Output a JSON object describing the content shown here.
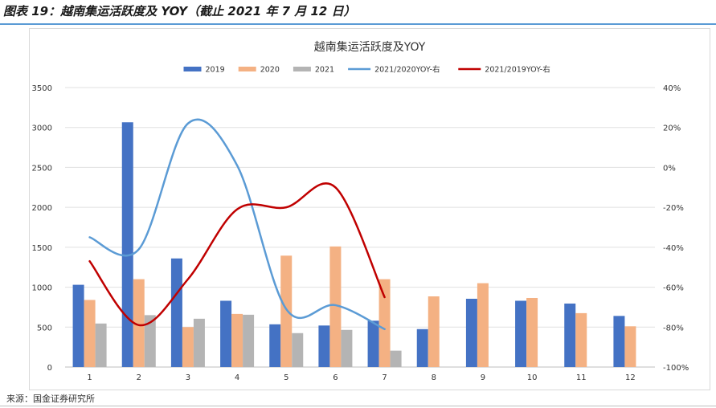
{
  "header": {
    "figure_title": "图表 19：越南集运活跃度及 YOY（截止 2021 年 7 月 12 日）"
  },
  "footer": {
    "source": "来源：国金证券研究所"
  },
  "chart_data": {
    "type": "bar",
    "title": "越南集运活跃度及YOY",
    "categories": [
      "1",
      "2",
      "3",
      "4",
      "5",
      "6",
      "7",
      "8",
      "9",
      "10",
      "11",
      "12"
    ],
    "series": [
      {
        "name": "2019",
        "type": "bar",
        "axis": "left",
        "color": "#4472c4",
        "values": [
          1030,
          3065,
          1360,
          830,
          535,
          520,
          580,
          475,
          855,
          830,
          795,
          640
        ]
      },
      {
        "name": "2020",
        "type": "bar",
        "axis": "left",
        "color": "#f4b183",
        "values": [
          840,
          1100,
          500,
          665,
          1395,
          1510,
          1100,
          885,
          1050,
          865,
          675,
          510
        ]
      },
      {
        "name": "2021",
        "type": "bar",
        "axis": "left",
        "color": "#b4b4b4",
        "values": [
          545,
          650,
          605,
          655,
          425,
          465,
          205,
          null,
          null,
          null,
          null,
          null
        ]
      },
      {
        "name": "2021/2020YOY-右",
        "type": "line",
        "axis": "right",
        "color": "#5b9bd5",
        "values": [
          -35,
          -41,
          22,
          1,
          -71,
          -69,
          -81,
          null,
          null,
          null,
          null,
          null
        ]
      },
      {
        "name": "2021/2019YOY-右",
        "type": "line",
        "axis": "right",
        "color": "#c00000",
        "values": [
          -47,
          -79,
          -56,
          -21,
          -20,
          -10,
          -65,
          null,
          null,
          null,
          null,
          null
        ]
      }
    ],
    "y_left": {
      "min": 0,
      "max": 3500,
      "ticks": [
        "0",
        "500",
        "1000",
        "1500",
        "2000",
        "2500",
        "3000",
        "3500"
      ]
    },
    "y_right": {
      "min": -100,
      "max": 40,
      "ticks": [
        "-100%",
        "-80%",
        "-60%",
        "-40%",
        "-20%",
        "0%",
        "20%",
        "40%"
      ]
    },
    "grid": true,
    "legend_position": "top"
  }
}
